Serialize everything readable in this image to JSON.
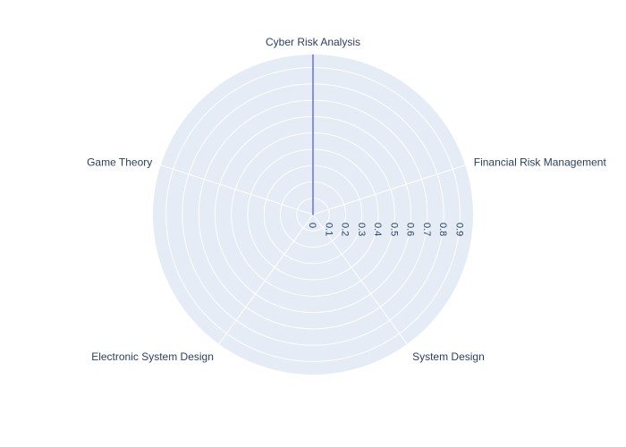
{
  "chart_data": {
    "type": "radar",
    "categories": [
      "Cyber Risk Analysis",
      "Financial Risk Management",
      "System Design",
      "Electronic System Design",
      "Game Theory"
    ],
    "series": [
      {
        "values": [
          0.98,
          0,
          0,
          0,
          0
        ]
      }
    ],
    "radial_range": [
      0,
      0.98
    ],
    "radial_ticks": [
      "0",
      "0.1",
      "0.2",
      "0.3",
      "0.4",
      "0.5",
      "0.6",
      "0.7",
      "0.8",
      "0.9"
    ],
    "grid": true,
    "legend": "none",
    "colors": {
      "background": "#e5ecf6",
      "grid": "#ffffff",
      "line": "#636efa",
      "text": "#2a3f5f"
    }
  }
}
